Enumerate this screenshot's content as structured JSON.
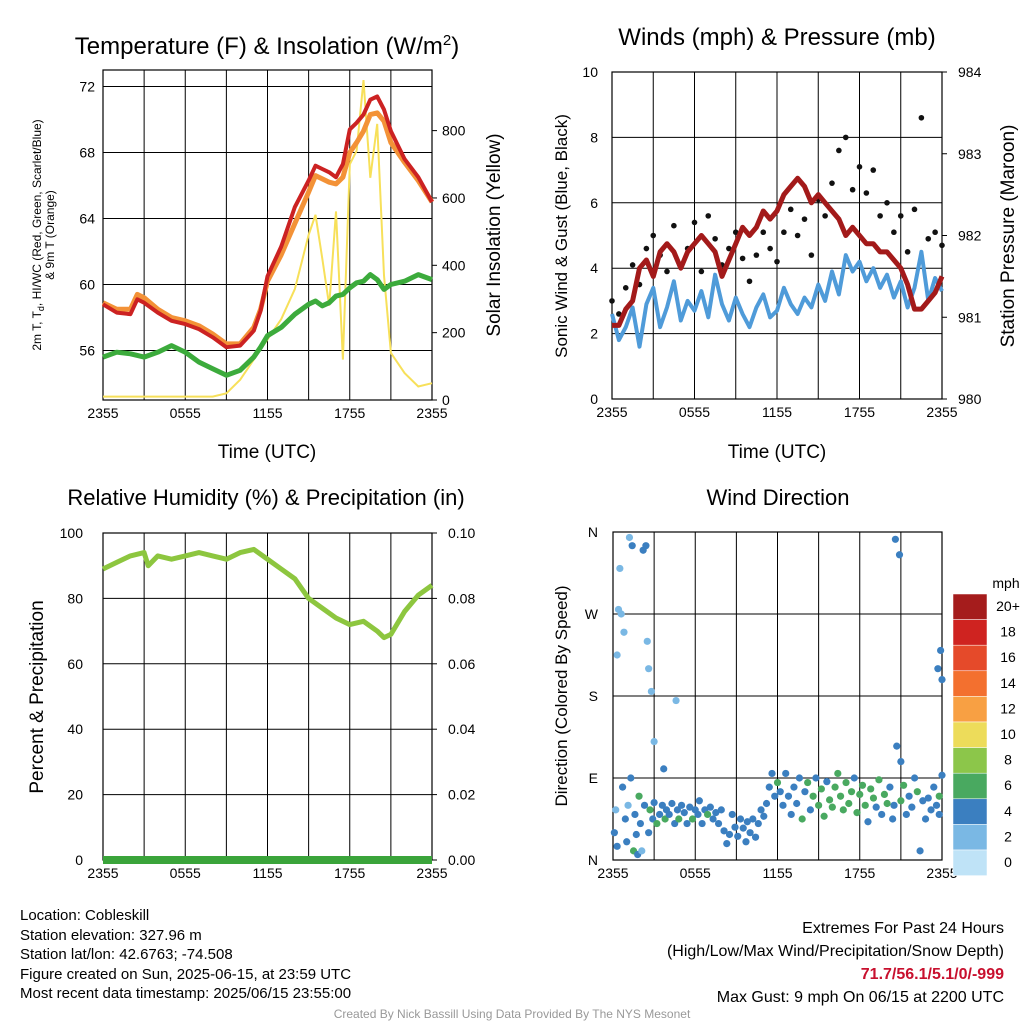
{
  "chart_data": [
    {
      "type": "line",
      "title": "Temperature (F) & Insolation (W/m²)",
      "xlabel": "Time (UTC)",
      "ylabel_lines": [
        "2m T, T",
        "d",
        ", HI/WC (Red, Green, Scarlet/Blue)",
        "& 9m T (Orange)"
      ],
      "y2label": "Solar Insolation (Yellow)",
      "x_ticks": [
        "2355",
        "0555",
        "1155",
        "1755",
        "2355"
      ],
      "ylim": [
        53,
        73
      ],
      "y_ticks": [
        56,
        60,
        64,
        68,
        72
      ],
      "y2lim": [
        0,
        980
      ],
      "y2_ticks": [
        0,
        200,
        400,
        600,
        800
      ],
      "colors": {
        "temp": "#cc2222",
        "temp9m": "#f39237",
        "dewpoint": "#3cab3c",
        "solar": "#f7e05a"
      },
      "x_hours": [
        0,
        1,
        2,
        2.5,
        3,
        4,
        5,
        6,
        7,
        8,
        9,
        10,
        11,
        11.5,
        12,
        13,
        14,
        15,
        15.5,
        16,
        16.5,
        17,
        17.5,
        18,
        18.5,
        19,
        19.5,
        20,
        20.5,
        21,
        22,
        23,
        24
      ],
      "temp": [
        58.8,
        58.3,
        58.2,
        59.1,
        58.9,
        58.3,
        57.8,
        57.6,
        57.3,
        56.8,
        56.2,
        56.3,
        57.2,
        58.4,
        60.5,
        62.3,
        64.7,
        66.3,
        67.2,
        67.0,
        66.8,
        66.5,
        67.3,
        69.4,
        69.8,
        70.3,
        71.2,
        71.4,
        70.6,
        69.3,
        67.6,
        66.5,
        65.0
      ],
      "temp9m": [
        58.9,
        58.5,
        58.5,
        59.4,
        59.2,
        58.5,
        58.0,
        57.8,
        57.5,
        57.0,
        56.4,
        56.4,
        57.4,
        58.5,
        60.2,
        61.8,
        63.7,
        65.6,
        66.6,
        66.4,
        66.2,
        66.1,
        66.5,
        68.0,
        68.6,
        69.3,
        70.3,
        70.4,
        69.9,
        68.6,
        67.4,
        66.3,
        65.0
      ],
      "dewpoint": [
        55.6,
        55.9,
        55.8,
        55.7,
        55.6,
        55.9,
        56.3,
        55.9,
        55.3,
        54.9,
        54.5,
        54.8,
        55.6,
        56.2,
        56.9,
        57.4,
        58.2,
        58.8,
        59.0,
        58.7,
        58.9,
        59.3,
        59.4,
        59.8,
        60.1,
        60.2,
        60.6,
        60.3,
        59.7,
        60.0,
        60.2,
        60.6,
        60.3
      ],
      "solar": [
        10,
        10,
        10,
        10,
        10,
        10,
        10,
        10,
        10,
        10,
        20,
        60,
        120,
        150,
        180,
        240,
        330,
        490,
        550,
        420,
        280,
        560,
        120,
        700,
        740,
        950,
        660,
        820,
        370,
        140,
        80,
        40,
        50
      ]
    },
    {
      "type": "line",
      "title": "Winds (mph) & Pressure (mb)",
      "xlabel": "Time (UTC)",
      "ylabel": "Sonic Wind & Gust (Blue, Black)",
      "y2label": "Station Pressure (Maroon)",
      "x_ticks": [
        "2355",
        "0555",
        "1155",
        "1755",
        "2355"
      ],
      "ylim": [
        0,
        10
      ],
      "y_ticks": [
        0,
        2,
        4,
        6,
        8,
        10
      ],
      "y2lim": [
        980,
        984
      ],
      "y2_ticks": [
        980,
        981,
        982,
        983,
        984
      ],
      "colors": {
        "wind": "#4f9bd9",
        "gust": "#111111",
        "pressure": "#a31a1a"
      },
      "x_hours": [
        0,
        0.5,
        1,
        1.5,
        2,
        2.5,
        3,
        3.5,
        4,
        4.5,
        5,
        5.5,
        6,
        6.5,
        7,
        7.5,
        8,
        8.5,
        9,
        9.5,
        10,
        10.5,
        11,
        11.5,
        12,
        12.5,
        13,
        13.5,
        14,
        14.5,
        15,
        15.5,
        16,
        16.5,
        17,
        17.5,
        18,
        18.5,
        19,
        19.5,
        20,
        20.5,
        21,
        21.5,
        22,
        22.5,
        23,
        23.5,
        24
      ],
      "wind": [
        2.6,
        1.8,
        2.2,
        2.8,
        1.6,
        2.9,
        3.4,
        2.2,
        2.8,
        3.6,
        2.4,
        3.0,
        2.7,
        3.3,
        2.5,
        3.8,
        2.9,
        2.4,
        3.1,
        2.6,
        2.2,
        2.8,
        3.2,
        2.5,
        2.7,
        3.4,
        2.9,
        2.6,
        3.1,
        2.8,
        3.5,
        3.0,
        3.9,
        3.2,
        4.4,
        3.9,
        4.2,
        3.6,
        4.0,
        3.4,
        3.8,
        3.1,
        3.6,
        2.8,
        3.4,
        4.5,
        3.0,
        3.7,
        3.3
      ],
      "gust": [
        3.0,
        2.6,
        3.4,
        4.1,
        3.5,
        4.6,
        5.0,
        4.4,
        3.9,
        5.3,
        4.1,
        4.6,
        5.4,
        3.9,
        5.6,
        4.9,
        4.1,
        4.6,
        5.1,
        4.3,
        3.6,
        4.4,
        5.1,
        4.6,
        4.2,
        5.1,
        5.8,
        5.0,
        5.5,
        4.4,
        6.1,
        5.6,
        6.6,
        7.6,
        8.0,
        6.4,
        7.1,
        6.3,
        7.0,
        5.6,
        6.0,
        5.1,
        5.6,
        4.5,
        5.8,
        8.6,
        4.9,
        5.1,
        4.7
      ],
      "pressure": [
        980.9,
        980.9,
        981.1,
        981.2,
        981.6,
        981.7,
        981.5,
        981.8,
        981.9,
        981.8,
        981.6,
        981.8,
        981.9,
        982.0,
        981.9,
        981.8,
        981.5,
        981.7,
        981.9,
        982.1,
        982.0,
        982.1,
        982.3,
        982.2,
        982.3,
        982.5,
        982.6,
        982.7,
        982.6,
        982.4,
        982.5,
        982.4,
        982.3,
        982.2,
        982.0,
        982.1,
        982.0,
        981.9,
        981.9,
        981.8,
        981.8,
        981.7,
        981.6,
        981.4,
        981.1,
        981.1,
        981.2,
        981.3,
        981.5
      ]
    },
    {
      "type": "line",
      "title": "Relative Humidity (%) & Precipitation (in)",
      "ylabel": "Percent & Precipitation",
      "x_ticks": [
        "2355",
        "0555",
        "1155",
        "1755",
        "2355"
      ],
      "ylim": [
        0,
        100
      ],
      "y_ticks": [
        0,
        20,
        40,
        60,
        80,
        100
      ],
      "y2lim": [
        0,
        0.1
      ],
      "y2_ticks": [
        "0.00",
        "0.02",
        "0.04",
        "0.06",
        "0.08",
        "0.10"
      ],
      "colors": {
        "rh": "#8dc63f",
        "precip": "#3aa43a"
      },
      "x_hours": [
        0,
        1,
        2,
        3,
        3.3,
        4,
        5,
        6,
        7,
        8,
        9,
        10,
        11,
        12,
        13,
        14,
        15,
        16,
        17,
        18,
        19,
        20,
        20.5,
        21,
        22,
        23,
        24
      ],
      "rh": [
        89,
        91,
        93,
        94,
        90,
        93,
        92,
        93,
        94,
        93,
        92,
        94,
        95,
        92,
        89,
        86,
        80,
        77,
        74,
        72,
        73,
        70,
        68,
        69,
        76,
        81,
        84
      ],
      "precip_in": [
        0,
        0
      ]
    },
    {
      "type": "scatter",
      "title": "Wind Direction",
      "ylabel": "Direction (Colored By Speed)",
      "x_ticks": [
        "2355",
        "0555",
        "1155",
        "1755",
        "2355"
      ],
      "y_ticks": [
        "N",
        "E",
        "S",
        "W",
        "N"
      ],
      "ylim": [
        0,
        360
      ],
      "colorbar": {
        "unit": "mph",
        "labels": [
          "20+",
          "18",
          "16",
          "14",
          "12",
          "10",
          "8",
          "6",
          "4",
          "2",
          "0"
        ],
        "colors": [
          "#a51c1c",
          "#cf2320",
          "#e54a2a",
          "#f3702f",
          "#f8a043",
          "#eddc5a",
          "#8cc64a",
          "#49a960",
          "#3b7fc0",
          "#7ab8e4",
          "#bfe3f7"
        ]
      },
      "points": [
        [
          0.1,
          30,
          2
        ],
        [
          0.2,
          55,
          1
        ],
        [
          0.3,
          15,
          2
        ],
        [
          0.3,
          225,
          1
        ],
        [
          0.4,
          275,
          1
        ],
        [
          0.5,
          320,
          1
        ],
        [
          0.6,
          270,
          1
        ],
        [
          0.7,
          80,
          2
        ],
        [
          0.8,
          250,
          1
        ],
        [
          0.9,
          45,
          2
        ],
        [
          1.0,
          20,
          2
        ],
        [
          1.1,
          60,
          1
        ],
        [
          1.2,
          354,
          1
        ],
        [
          1.3,
          90,
          2
        ],
        [
          1.4,
          345,
          2
        ],
        [
          1.5,
          10,
          3
        ],
        [
          1.6,
          50,
          2
        ],
        [
          1.7,
          28,
          2
        ],
        [
          1.8,
          6,
          2
        ],
        [
          1.9,
          70,
          3
        ],
        [
          2.0,
          40,
          2
        ],
        [
          2.1,
          10,
          1
        ],
        [
          2.2,
          340,
          2
        ],
        [
          2.3,
          60,
          2
        ],
        [
          2.4,
          345,
          2
        ],
        [
          2.5,
          240,
          1
        ],
        [
          2.6,
          30,
          2
        ],
        [
          2.6,
          210,
          1
        ],
        [
          2.7,
          55,
          3
        ],
        [
          2.8,
          185,
          1
        ],
        [
          2.9,
          45,
          2
        ],
        [
          3.0,
          130,
          1
        ],
        [
          3.0,
          63,
          2
        ],
        [
          3.2,
          40,
          3
        ],
        [
          3.4,
          50,
          2
        ],
        [
          3.6,
          60,
          2
        ],
        [
          3.7,
          100,
          2
        ],
        [
          3.8,
          45,
          3
        ],
        [
          3.9,
          55,
          2
        ],
        [
          4.1,
          50,
          2
        ],
        [
          4.3,
          62,
          2
        ],
        [
          4.5,
          40,
          2
        ],
        [
          4.6,
          175,
          1
        ],
        [
          4.7,
          55,
          2
        ],
        [
          4.8,
          45,
          3
        ],
        [
          5.0,
          60,
          2
        ],
        [
          5.2,
          52,
          2
        ],
        [
          5.4,
          40,
          2
        ],
        [
          5.6,
          58,
          2
        ],
        [
          5.8,
          45,
          3
        ],
        [
          6.0,
          55,
          2
        ],
        [
          6.2,
          50,
          2
        ],
        [
          6.3,
          65,
          2
        ],
        [
          6.5,
          40,
          2
        ],
        [
          6.7,
          55,
          2
        ],
        [
          6.9,
          50,
          3
        ],
        [
          7.1,
          58,
          2
        ],
        [
          7.3,
          45,
          2
        ],
        [
          7.5,
          52,
          2
        ],
        [
          7.7,
          40,
          2
        ],
        [
          7.9,
          55,
          2
        ],
        [
          8.1,
          32,
          2
        ],
        [
          8.3,
          18,
          2
        ],
        [
          8.5,
          28,
          2
        ],
        [
          8.7,
          50,
          2
        ],
        [
          8.9,
          36,
          2
        ],
        [
          9.1,
          26,
          2
        ],
        [
          9.3,
          45,
          2
        ],
        [
          9.5,
          35,
          2
        ],
        [
          9.7,
          20,
          2
        ],
        [
          9.8,
          42,
          2
        ],
        [
          10.0,
          30,
          2
        ],
        [
          10.2,
          45,
          2
        ],
        [
          10.4,
          25,
          2
        ],
        [
          10.6,
          40,
          2
        ],
        [
          10.8,
          55,
          2
        ],
        [
          11.0,
          48,
          2
        ],
        [
          11.2,
          62,
          2
        ],
        [
          11.4,
          80,
          2
        ],
        [
          11.6,
          95,
          2
        ],
        [
          11.8,
          70,
          2
        ],
        [
          12.0,
          85,
          3
        ],
        [
          12.2,
          75,
          2
        ],
        [
          12.4,
          60,
          2
        ],
        [
          12.6,
          95,
          2
        ],
        [
          12.8,
          70,
          2
        ],
        [
          13.0,
          50,
          2
        ],
        [
          13.2,
          80,
          2
        ],
        [
          13.4,
          62,
          2
        ],
        [
          13.6,
          90,
          2
        ],
        [
          13.8,
          45,
          3
        ],
        [
          14.0,
          75,
          2
        ],
        [
          14.2,
          85,
          3
        ],
        [
          14.4,
          55,
          2
        ],
        [
          14.6,
          70,
          3
        ],
        [
          14.8,
          90,
          2
        ],
        [
          15.0,
          60,
          3
        ],
        [
          15.2,
          78,
          3
        ],
        [
          15.4,
          48,
          3
        ],
        [
          15.6,
          86,
          2
        ],
        [
          15.8,
          66,
          3
        ],
        [
          16.0,
          58,
          3
        ],
        [
          16.2,
          80,
          3
        ],
        [
          16.4,
          95,
          3
        ],
        [
          16.6,
          70,
          3
        ],
        [
          16.8,
          55,
          3
        ],
        [
          17.0,
          85,
          3
        ],
        [
          17.2,
          62,
          3
        ],
        [
          17.4,
          75,
          3
        ],
        [
          17.6,
          90,
          2
        ],
        [
          17.8,
          52,
          3
        ],
        [
          18.0,
          72,
          3
        ],
        [
          18.2,
          82,
          3
        ],
        [
          18.4,
          60,
          3
        ],
        [
          18.6,
          42,
          2
        ],
        [
          18.8,
          78,
          3
        ],
        [
          19.0,
          68,
          3
        ],
        [
          19.2,
          58,
          2
        ],
        [
          19.4,
          88,
          3
        ],
        [
          19.6,
          50,
          2
        ],
        [
          19.8,
          72,
          3
        ],
        [
          20.0,
          62,
          3
        ],
        [
          20.2,
          80,
          2
        ],
        [
          20.4,
          45,
          2
        ],
        [
          20.5,
          60,
          2
        ],
        [
          20.6,
          352,
          2
        ],
        [
          20.7,
          125,
          2
        ],
        [
          20.9,
          335,
          2
        ],
        [
          21.0,
          65,
          3
        ],
        [
          21.0,
          108,
          2
        ],
        [
          21.2,
          82,
          3
        ],
        [
          21.4,
          50,
          2
        ],
        [
          21.6,
          70,
          2
        ],
        [
          21.8,
          58,
          2
        ],
        [
          22.0,
          90,
          2
        ],
        [
          22.2,
          75,
          3
        ],
        [
          22.4,
          10,
          2
        ],
        [
          22.6,
          65,
          2
        ],
        [
          22.8,
          45,
          2
        ],
        [
          23.0,
          68,
          2
        ],
        [
          23.2,
          55,
          2
        ],
        [
          23.4,
          80,
          2
        ],
        [
          23.6,
          60,
          2
        ],
        [
          23.7,
          210,
          2
        ],
        [
          23.8,
          50,
          2
        ],
        [
          23.8,
          70,
          3
        ],
        [
          23.9,
          230,
          2
        ],
        [
          24.0,
          198,
          2
        ],
        [
          24.0,
          93,
          2
        ]
      ]
    }
  ],
  "footer": {
    "location": "Location: Cobleskill",
    "elevation": "Station elevation: 327.96 m",
    "latlon": "Station lat/lon: 42.6763; -74.508",
    "created": "Figure created on Sun, 2025-06-15, at 23:59 UTC",
    "recent": "Most recent data timestamp: 2025/06/15 23:55:00",
    "extremes_title": "Extremes For Past 24 Hours",
    "extremes_subtitle": "(High/Low/Max Wind/Precipitation/Snow Depth)",
    "extremes_values": "71.7/56.1/5.1/0/-999",
    "max_gust": "Max Gust: 9 mph On 06/15 at 2200 UTC",
    "credit": "Created By Nick Bassill Using Data Provided By The NYS Mesonet"
  }
}
